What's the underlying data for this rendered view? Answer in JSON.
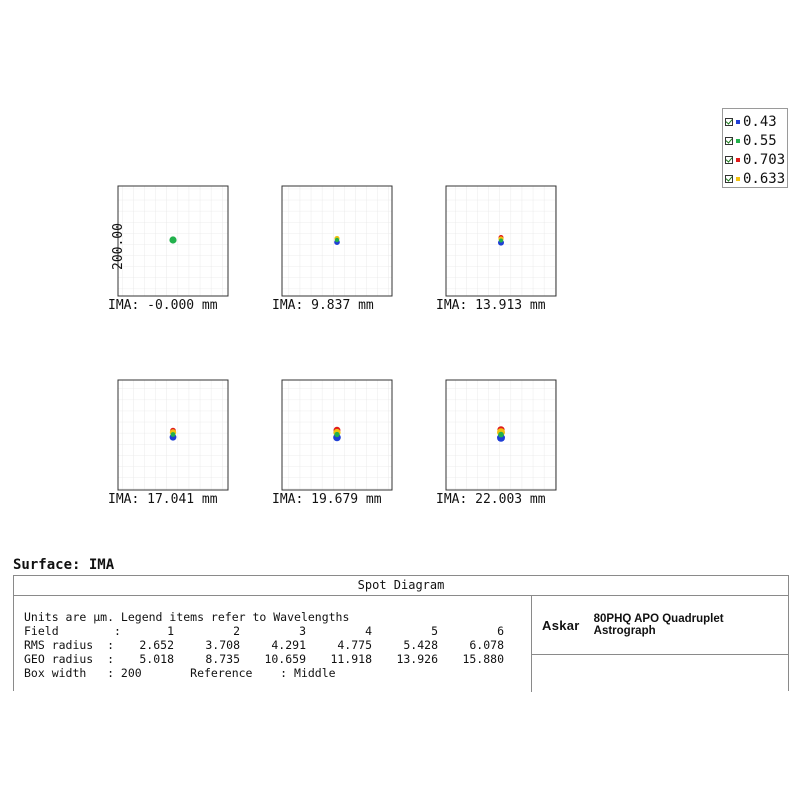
{
  "legend": {
    "items": [
      {
        "label": "0.43",
        "color": "#1f3fd6"
      },
      {
        "label": "0.55",
        "color": "#22b14c"
      },
      {
        "label": "0.703",
        "color": "#e01b1b"
      },
      {
        "label": "0.633",
        "color": "#f2c20f"
      }
    ]
  },
  "axis_label": "200.00",
  "spots": [
    {
      "field": "IMA: -0.000 mm"
    },
    {
      "field": "IMA: 9.837 mm"
    },
    {
      "field": "IMA: 13.913 mm"
    },
    {
      "field": "IMA: 17.041 mm"
    },
    {
      "field": "IMA: 19.679 mm"
    },
    {
      "field": "IMA: 22.003 mm"
    }
  ],
  "surface_label": "Surface: IMA",
  "info": {
    "title": "Spot Diagram",
    "units_line": "Units are µm. Legend items refer to Wavelengths",
    "field_label": "Field        :",
    "fields": [
      "1",
      "2",
      "3",
      "4",
      "5",
      "6"
    ],
    "rms_label": "RMS radius  :",
    "rms": [
      "2.652",
      "3.708",
      "4.291",
      "4.775",
      "5.428",
      "6.078"
    ],
    "geo_label": "GEO radius  :",
    "geo": [
      "5.018",
      "8.735",
      "10.659",
      "11.918",
      "13.926",
      "15.880"
    ],
    "box_line": "Box width   : 200       Reference    : Middle",
    "brand": "Askar",
    "product": "80PHQ APO Quadruplet Astrograph"
  }
}
